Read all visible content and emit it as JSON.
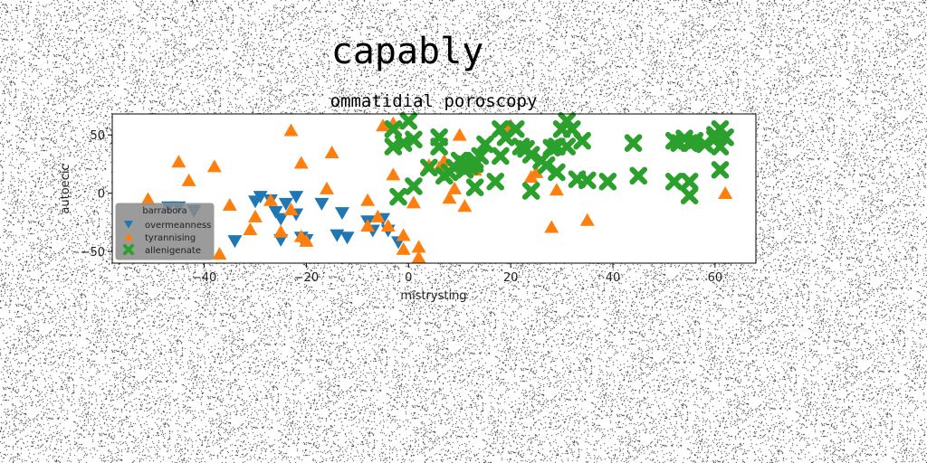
{
  "chart_data": {
    "type": "scatter",
    "suptitle": "capably",
    "title": "ommatidial poroscopy",
    "xlabel": "mistrysting",
    "ylabel": "autoecic",
    "xlim": [
      -58,
      68
    ],
    "ylim": [
      -60,
      68
    ],
    "xticks": [
      -40,
      -20,
      0,
      20,
      40,
      60
    ],
    "yticks": [
      -50,
      0,
      50
    ],
    "grid": false,
    "legend": {
      "title": "barrabora",
      "placement": "lower-left"
    },
    "series": [
      {
        "name": "overmeanness",
        "marker": "triangle-down",
        "color": "#1f77b4",
        "points": [
          [
            -47,
            -12
          ],
          [
            -45,
            -12
          ],
          [
            -42,
            -15
          ],
          [
            -34,
            -41
          ],
          [
            -30,
            -7
          ],
          [
            -29,
            -3
          ],
          [
            -27,
            -6
          ],
          [
            -26,
            -16
          ],
          [
            -25,
            -22
          ],
          [
            -25,
            -40
          ],
          [
            -24,
            -9
          ],
          [
            -22,
            -3
          ],
          [
            -22,
            -18
          ],
          [
            -21,
            -38
          ],
          [
            -20,
            -40
          ],
          [
            -17,
            -9
          ],
          [
            -14,
            -36
          ],
          [
            -13,
            -17
          ],
          [
            -12,
            -38
          ],
          [
            -8,
            -24
          ],
          [
            -7,
            -32
          ],
          [
            -5,
            -22
          ],
          [
            -4,
            -32
          ],
          [
            -2,
            -42
          ]
        ]
      },
      {
        "name": "tyrannising",
        "marker": "triangle-up",
        "color": "#ff7f0e",
        "points": [
          [
            -51,
            -5
          ],
          [
            -45,
            27
          ],
          [
            -43,
            11
          ],
          [
            -38,
            23
          ],
          [
            -37,
            -52
          ],
          [
            -35,
            -10
          ],
          [
            -31,
            -31
          ],
          [
            -30,
            -20
          ],
          [
            -27,
            -6
          ],
          [
            -25,
            -33
          ],
          [
            -23,
            54
          ],
          [
            -23,
            -14
          ],
          [
            -21,
            26
          ],
          [
            -21,
            -37
          ],
          [
            -20,
            -41
          ],
          [
            -16,
            4
          ],
          [
            -15,
            35
          ],
          [
            -8,
            -6
          ],
          [
            -8,
            -28
          ],
          [
            -6,
            -20
          ],
          [
            -5,
            58
          ],
          [
            -4,
            -28
          ],
          [
            -3,
            60
          ],
          [
            -3,
            16
          ],
          [
            -1,
            -36
          ],
          [
            -1,
            -48
          ],
          [
            1,
            -8
          ],
          [
            2,
            -55
          ],
          [
            2,
            -46
          ],
          [
            4,
            24
          ],
          [
            6,
            22
          ],
          [
            7,
            28
          ],
          [
            8,
            -4
          ],
          [
            9,
            4
          ],
          [
            10,
            50
          ],
          [
            11,
            -11
          ],
          [
            13,
            20
          ],
          [
            20,
            58
          ],
          [
            24,
            14
          ],
          [
            25,
            18
          ],
          [
            28,
            -29
          ],
          [
            29,
            3
          ],
          [
            35,
            -23
          ],
          [
            62,
            0
          ]
        ]
      },
      {
        "name": "allenigenate",
        "marker": "X",
        "color": "#2ca02c",
        "points": [
          [
            -3,
            55
          ],
          [
            -3,
            40
          ],
          [
            -2,
            -3
          ],
          [
            -1,
            43
          ],
          [
            0,
            62
          ],
          [
            1,
            46
          ],
          [
            1,
            6
          ],
          [
            4,
            22
          ],
          [
            6,
            48
          ],
          [
            6,
            40
          ],
          [
            7,
            15
          ],
          [
            8,
            18
          ],
          [
            9,
            22
          ],
          [
            10,
            28
          ],
          [
            11,
            20
          ],
          [
            11,
            25
          ],
          [
            12,
            23
          ],
          [
            13,
            25
          ],
          [
            13,
            5
          ],
          [
            13,
            28
          ],
          [
            14,
            32
          ],
          [
            15,
            42
          ],
          [
            17,
            10
          ],
          [
            18,
            55
          ],
          [
            18,
            32
          ],
          [
            19,
            48
          ],
          [
            21,
            55
          ],
          [
            22,
            40
          ],
          [
            23,
            38
          ],
          [
            24,
            2
          ],
          [
            24,
            33
          ],
          [
            26,
            28
          ],
          [
            27,
            24
          ],
          [
            28,
            39
          ],
          [
            29,
            40
          ],
          [
            29,
            18
          ],
          [
            30,
            55
          ],
          [
            31,
            62
          ],
          [
            31,
            40
          ],
          [
            32,
            55
          ],
          [
            33,
            12
          ],
          [
            34,
            45
          ],
          [
            35,
            11
          ],
          [
            39,
            10
          ],
          [
            44,
            43
          ],
          [
            45,
            15
          ],
          [
            52,
            45
          ],
          [
            52,
            10
          ],
          [
            53,
            43
          ],
          [
            54,
            47
          ],
          [
            55,
            -2
          ],
          [
            55,
            10
          ],
          [
            55,
            43
          ],
          [
            56,
            45
          ],
          [
            58,
            42
          ],
          [
            60,
            50
          ],
          [
            60,
            47
          ],
          [
            61,
            55
          ],
          [
            61,
            40
          ],
          [
            61,
            20
          ],
          [
            62,
            48
          ]
        ]
      }
    ]
  }
}
